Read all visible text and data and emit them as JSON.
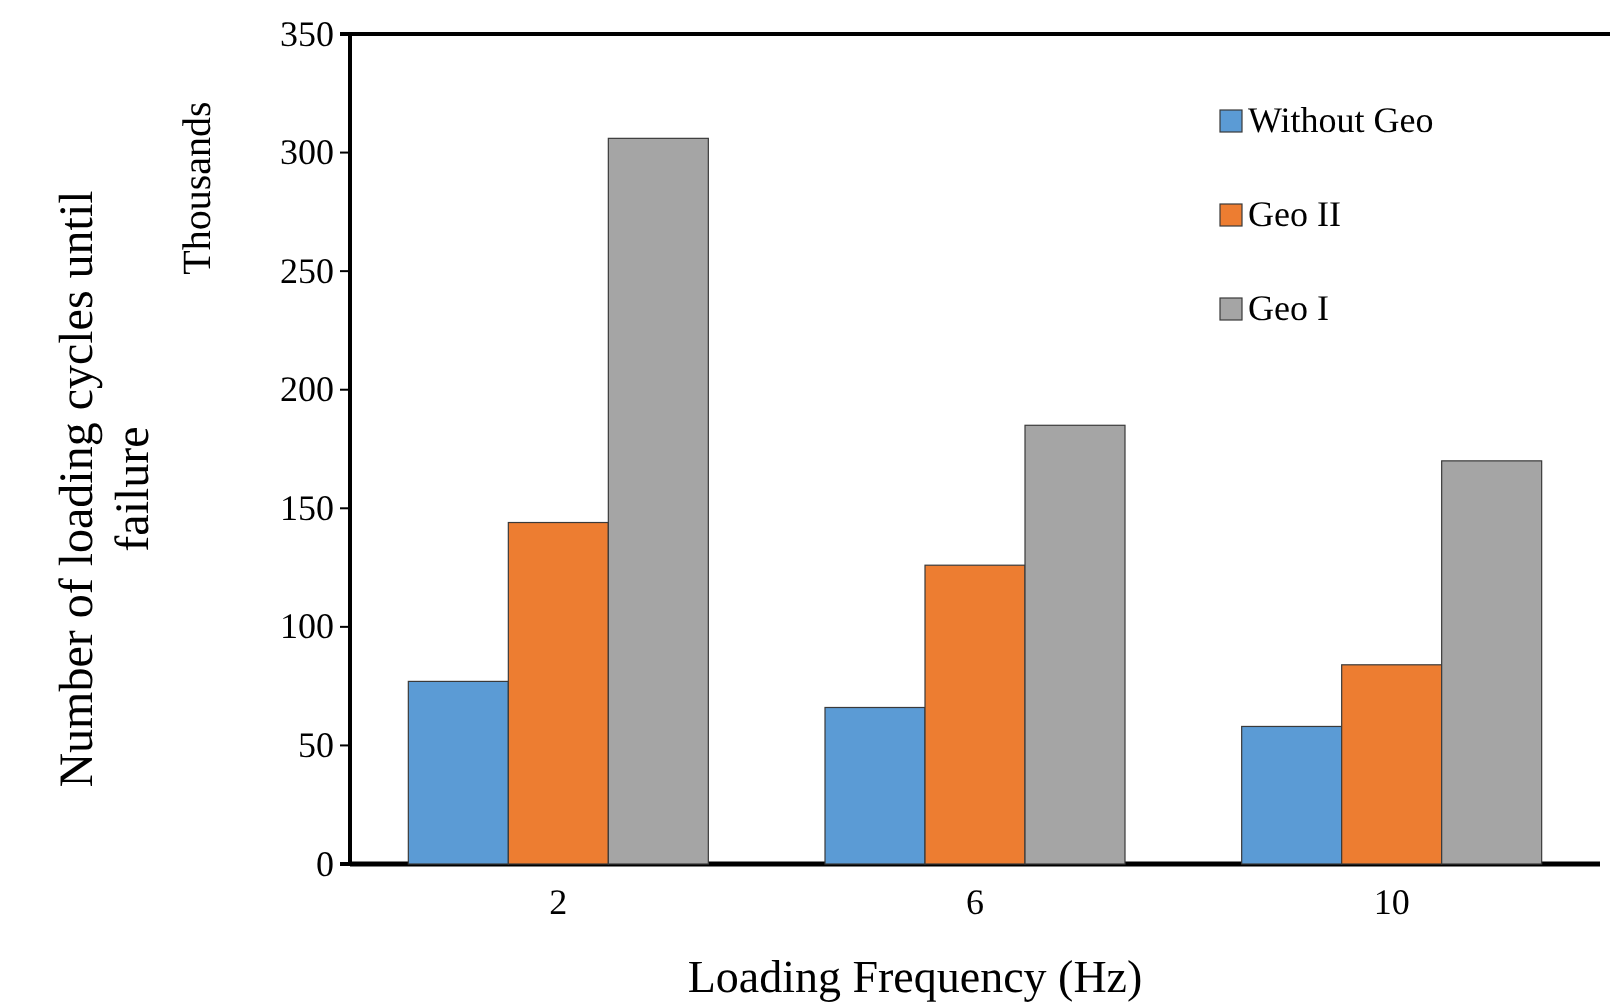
{
  "chart_data": {
    "type": "bar",
    "xlabel": "Loading Frequency (Hz)",
    "ylabel": "Number of loading cycles until failure",
    "annotations": [
      "Thousands"
    ],
    "categories": [
      "2",
      "6",
      "10"
    ],
    "series": [
      {
        "name": "Without Geo",
        "color": "#5b9bd5",
        "values": [
          77,
          66,
          58
        ]
      },
      {
        "name": "Geo II",
        "color": "#ed7d31",
        "values": [
          144,
          126,
          84
        ]
      },
      {
        "name": "Geo I",
        "color": "#a5a5a5",
        "values": [
          306,
          185,
          170
        ]
      }
    ],
    "ylim": [
      0,
      350
    ],
    "yticks": [
      0,
      50,
      100,
      150,
      200,
      250,
      300,
      350
    ],
    "grid": false,
    "legend": "top right"
  }
}
